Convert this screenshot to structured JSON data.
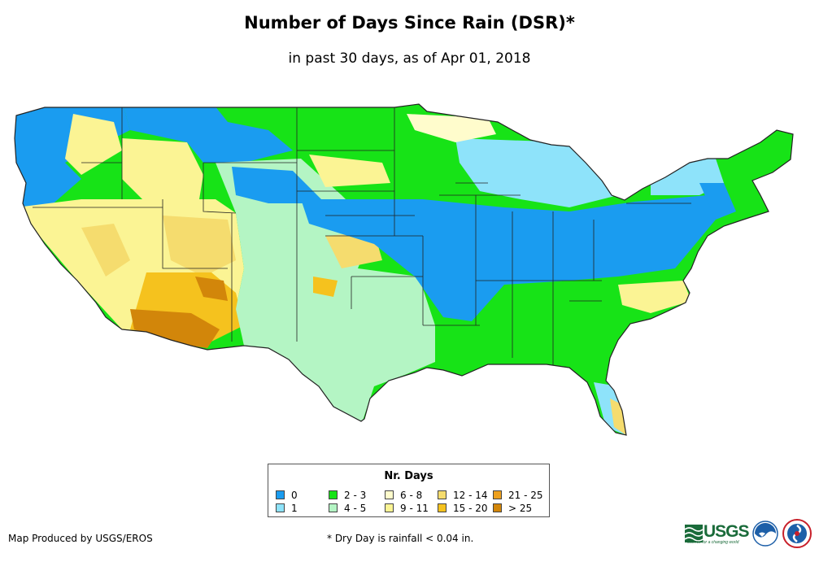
{
  "title": "Number of Days Since Rain (DSR)*",
  "subtitle": "in past 30 days, as of Apr 01, 2018",
  "legend": {
    "title": "Nr. Days",
    "items": [
      {
        "label": "0",
        "color": "#1a9cf0"
      },
      {
        "label": "1",
        "color": "#8ee3fa"
      },
      {
        "label": "2 - 3",
        "color": "#17e317"
      },
      {
        "label": "4 - 5",
        "color": "#b4f5c4"
      },
      {
        "label": "6 - 8",
        "color": "#fffccc"
      },
      {
        "label": "9 - 11",
        "color": "#fbf494"
      },
      {
        "label": "12 - 14",
        "color": "#f5dc6e"
      },
      {
        "label": "15 - 20",
        "color": "#f5c21e"
      },
      {
        "label": "21 - 25",
        "color": "#eda01e"
      },
      {
        "label": "> 25",
        "color": "#d2860a"
      }
    ]
  },
  "credit": "Map Produced by USGS/EROS",
  "footnote": "* Dry Day is rainfall < 0.04 in.",
  "logos": {
    "usgs_text": "USGS",
    "usgs_tagline": "science for a changing world"
  }
}
